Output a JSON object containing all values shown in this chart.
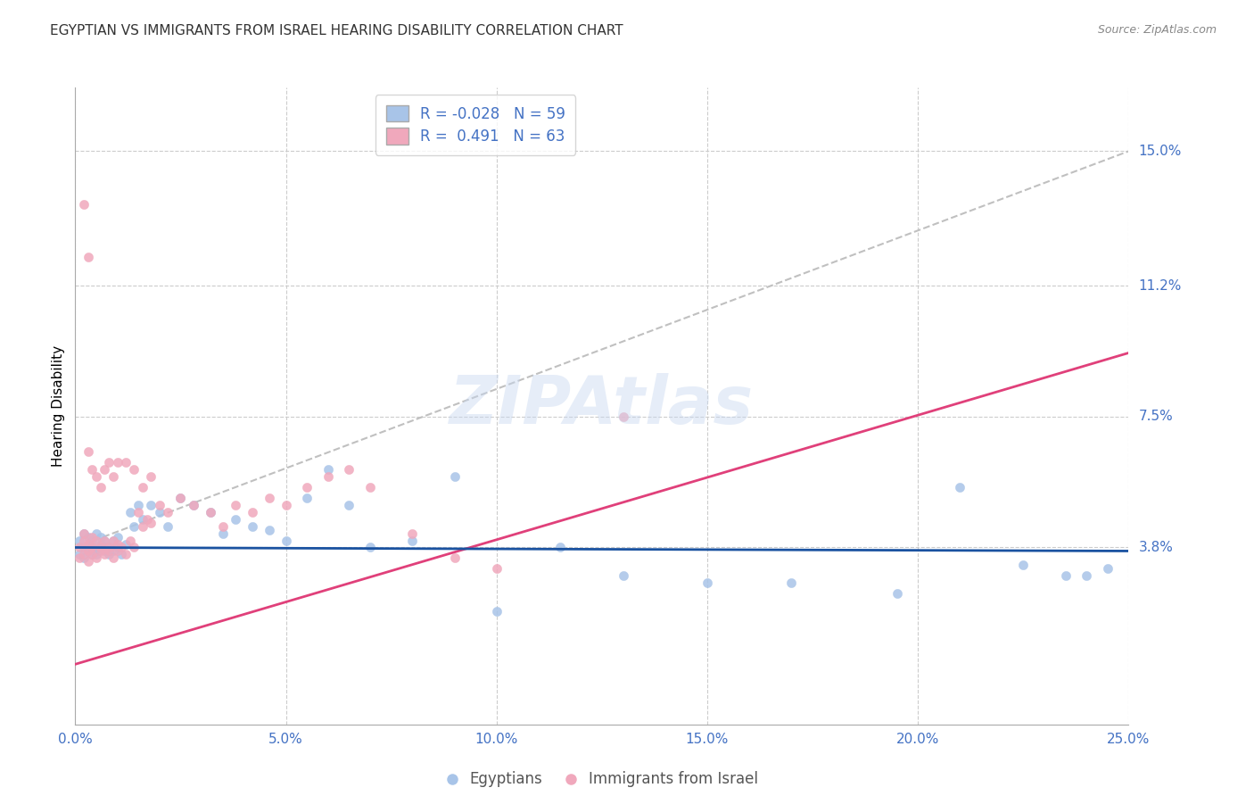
{
  "title": "EGYPTIAN VS IMMIGRANTS FROM ISRAEL HEARING DISABILITY CORRELATION CHART",
  "source": "Source: ZipAtlas.com",
  "ylabel": "Hearing Disability",
  "xmin": 0.0,
  "xmax": 0.25,
  "ymin": -0.012,
  "ymax": 0.168,
  "yticks": [
    0.038,
    0.075,
    0.112,
    0.15
  ],
  "ytick_labels": [
    "3.8%",
    "7.5%",
    "11.2%",
    "15.0%"
  ],
  "xticks": [
    0.0,
    0.05,
    0.1,
    0.15,
    0.2,
    0.25
  ],
  "xtick_labels": [
    "0.0%",
    "5.0%",
    "10.0%",
    "15.0%",
    "20.0%",
    "25.0%"
  ],
  "blue_color": "#a8c4e8",
  "pink_color": "#f0a8bc",
  "blue_line_color": "#1a52a0",
  "pink_line_color": "#e0407a",
  "gray_line_color": "#c0c0c0",
  "axis_color": "#4472c4",
  "tick_color": "#4472c4",
  "legend_r_blue": "-0.028",
  "legend_n_blue": "59",
  "legend_r_pink": "0.491",
  "legend_n_pink": "63",
  "legend_label_blue": "Egyptians",
  "legend_label_pink": "Immigrants from Israel",
  "watermark": "ZIPAtlas",
  "blue_line_x0": 0.0,
  "blue_line_x1": 0.25,
  "blue_line_y0": 0.038,
  "blue_line_y1": 0.037,
  "pink_line_x0": 0.0,
  "pink_line_x1": 0.25,
  "pink_line_y0": 0.005,
  "pink_line_y1": 0.093,
  "gray_line_x0": 0.0,
  "gray_line_x1": 0.25,
  "gray_line_y0": 0.038,
  "gray_line_y1": 0.15,
  "blue_x": [
    0.001,
    0.001,
    0.002,
    0.002,
    0.002,
    0.003,
    0.003,
    0.003,
    0.004,
    0.004,
    0.004,
    0.005,
    0.005,
    0.005,
    0.006,
    0.006,
    0.006,
    0.007,
    0.007,
    0.008,
    0.008,
    0.009,
    0.009,
    0.01,
    0.01,
    0.011,
    0.012,
    0.013,
    0.014,
    0.015,
    0.016,
    0.018,
    0.02,
    0.022,
    0.025,
    0.028,
    0.032,
    0.035,
    0.038,
    0.042,
    0.046,
    0.05,
    0.055,
    0.06,
    0.065,
    0.07,
    0.08,
    0.09,
    0.1,
    0.115,
    0.13,
    0.15,
    0.17,
    0.195,
    0.21,
    0.225,
    0.235,
    0.24,
    0.245
  ],
  "blue_y": [
    0.04,
    0.036,
    0.042,
    0.038,
    0.035,
    0.039,
    0.037,
    0.041,
    0.036,
    0.04,
    0.038,
    0.037,
    0.042,
    0.036,
    0.039,
    0.038,
    0.041,
    0.037,
    0.04,
    0.036,
    0.038,
    0.04,
    0.037,
    0.038,
    0.041,
    0.036,
    0.039,
    0.048,
    0.044,
    0.05,
    0.046,
    0.05,
    0.048,
    0.044,
    0.052,
    0.05,
    0.048,
    0.042,
    0.046,
    0.044,
    0.043,
    0.04,
    0.052,
    0.06,
    0.05,
    0.038,
    0.04,
    0.058,
    0.02,
    0.038,
    0.03,
    0.028,
    0.028,
    0.025,
    0.055,
    0.033,
    0.03,
    0.03,
    0.032
  ],
  "pink_x": [
    0.001,
    0.001,
    0.002,
    0.002,
    0.002,
    0.003,
    0.003,
    0.003,
    0.004,
    0.004,
    0.004,
    0.005,
    0.005,
    0.006,
    0.006,
    0.007,
    0.007,
    0.008,
    0.008,
    0.009,
    0.009,
    0.01,
    0.01,
    0.011,
    0.012,
    0.013,
    0.014,
    0.015,
    0.016,
    0.017,
    0.018,
    0.02,
    0.022,
    0.025,
    0.028,
    0.032,
    0.035,
    0.038,
    0.042,
    0.046,
    0.05,
    0.055,
    0.06,
    0.065,
    0.07,
    0.08,
    0.09,
    0.1,
    0.003,
    0.004,
    0.005,
    0.006,
    0.007,
    0.008,
    0.009,
    0.01,
    0.012,
    0.014,
    0.016,
    0.018,
    0.002,
    0.003,
    0.13
  ],
  "pink_y": [
    0.038,
    0.035,
    0.042,
    0.036,
    0.04,
    0.037,
    0.039,
    0.034,
    0.041,
    0.036,
    0.038,
    0.035,
    0.04,
    0.037,
    0.038,
    0.036,
    0.04,
    0.037,
    0.038,
    0.035,
    0.04,
    0.037,
    0.039,
    0.038,
    0.036,
    0.04,
    0.038,
    0.048,
    0.044,
    0.046,
    0.045,
    0.05,
    0.048,
    0.052,
    0.05,
    0.048,
    0.044,
    0.05,
    0.048,
    0.052,
    0.05,
    0.055,
    0.058,
    0.06,
    0.055,
    0.042,
    0.035,
    0.032,
    0.065,
    0.06,
    0.058,
    0.055,
    0.06,
    0.062,
    0.058,
    0.062,
    0.062,
    0.06,
    0.055,
    0.058,
    0.135,
    0.12,
    0.075
  ]
}
